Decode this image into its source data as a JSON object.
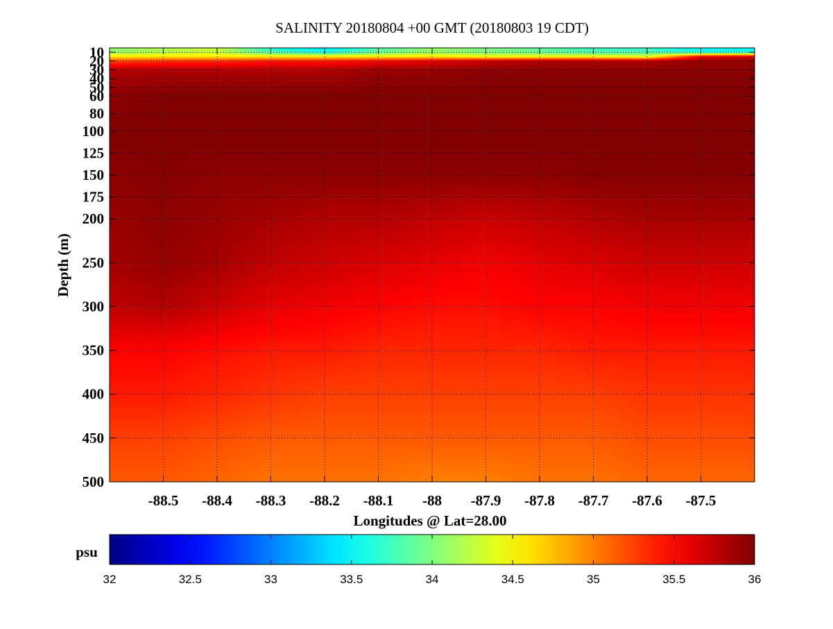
{
  "chart_data": {
    "type": "heatmap",
    "title": "SALINITY 20180804 +00 GMT (20180803 19 CDT)",
    "xlabel": "Longitudes @ Lat=28.00",
    "ylabel": "Depth (m)",
    "xlim": [
      -88.6,
      -87.4
    ],
    "ylim": [
      500,
      5
    ],
    "y_reversed": true,
    "x_ticks": [
      -88.5,
      -88.4,
      -88.3,
      -88.2,
      -88.1,
      -88.0,
      -87.9,
      -87.8,
      -87.7,
      -87.6,
      -87.5
    ],
    "x_tick_labels": [
      "-88.5",
      "-88.4",
      "-88.3",
      "-88.2",
      "-88.1",
      "-88",
      "-87.9",
      "-87.8",
      "-87.7",
      "-87.6",
      "-87.5"
    ],
    "y_ticks": [
      10,
      20,
      30,
      40,
      50,
      60,
      80,
      100,
      125,
      150,
      175,
      200,
      250,
      300,
      350,
      400,
      450,
      500
    ],
    "y_tick_labels": [
      "10",
      "20",
      "30",
      "40",
      "50",
      "60",
      "80",
      "100",
      "125",
      "150",
      "175",
      "200",
      "250",
      "300",
      "350",
      "400",
      "450",
      "500"
    ],
    "grid": true,
    "colormap": "jet",
    "colorbar": {
      "label": "psu",
      "range": [
        32,
        36
      ],
      "ticks": [
        32,
        32.5,
        33,
        33.5,
        34,
        34.5,
        35,
        35.5,
        36
      ],
      "tick_labels": [
        "32",
        "32.5",
        "33",
        "33.5",
        "34",
        "34.5",
        "35",
        "35.5",
        "36"
      ]
    },
    "z_x": [
      -88.6,
      -88.5,
      -88.4,
      -88.3,
      -88.2,
      -88.1,
      -88.0,
      -87.9,
      -87.8,
      -87.7,
      -87.6,
      -87.5,
      -87.4
    ],
    "z_y": [
      5,
      10,
      15,
      20,
      30,
      60,
      100,
      150,
      200,
      250,
      300,
      350,
      400,
      450,
      500
    ],
    "z": [
      [
        34.0,
        34.2,
        34.3,
        33.6,
        33.4,
        33.8,
        34.1,
        34.0,
        33.9,
        33.7,
        33.7,
        33.5,
        33.5
      ],
      [
        34.1,
        34.2,
        34.3,
        33.8,
        33.6,
        33.9,
        34.1,
        34.0,
        33.9,
        33.8,
        33.8,
        33.6,
        33.6
      ],
      [
        34.6,
        34.6,
        34.6,
        34.6,
        34.6,
        34.6,
        34.6,
        34.5,
        34.5,
        34.5,
        34.4,
        35.6,
        35.7
      ],
      [
        35.2,
        35.3,
        35.3,
        35.4,
        35.4,
        35.5,
        35.6,
        35.7,
        35.8,
        35.8,
        35.8,
        35.9,
        35.9
      ],
      [
        35.8,
        35.8,
        35.8,
        35.8,
        35.8,
        35.9,
        35.9,
        35.95,
        35.95,
        35.95,
        35.95,
        35.95,
        35.95
      ],
      [
        35.95,
        36.0,
        36.0,
        36.0,
        36.0,
        36.0,
        36.0,
        36.0,
        36.0,
        36.0,
        36.0,
        36.0,
        36.0
      ],
      [
        36.0,
        36.0,
        36.0,
        36.0,
        36.0,
        36.0,
        36.0,
        36.0,
        36.0,
        36.0,
        36.0,
        36.0,
        36.0
      ],
      [
        35.95,
        35.98,
        35.95,
        35.95,
        35.95,
        35.95,
        35.95,
        35.95,
        35.95,
        35.98,
        35.98,
        35.98,
        35.98
      ],
      [
        35.9,
        35.95,
        35.9,
        35.85,
        35.8,
        35.8,
        35.75,
        35.7,
        35.75,
        35.8,
        35.85,
        35.85,
        35.85
      ],
      [
        35.85,
        35.92,
        35.85,
        35.75,
        35.7,
        35.65,
        35.6,
        35.55,
        35.6,
        35.65,
        35.7,
        35.7,
        35.7
      ],
      [
        35.75,
        35.8,
        35.7,
        35.6,
        35.55,
        35.5,
        35.45,
        35.45,
        35.5,
        35.5,
        35.55,
        35.55,
        35.55
      ],
      [
        35.5,
        35.5,
        35.45,
        35.4,
        35.4,
        35.35,
        35.35,
        35.35,
        35.35,
        35.4,
        35.4,
        35.4,
        35.4
      ],
      [
        35.4,
        35.4,
        35.35,
        35.3,
        35.25,
        35.25,
        35.25,
        35.25,
        35.25,
        35.25,
        35.3,
        35.3,
        35.3
      ],
      [
        35.25,
        35.25,
        35.2,
        35.15,
        35.15,
        35.15,
        35.15,
        35.15,
        35.15,
        35.15,
        35.2,
        35.2,
        35.2
      ],
      [
        35.15,
        35.15,
        35.1,
        35.05,
        35.05,
        35.05,
        35.0,
        35.0,
        35.05,
        35.05,
        35.1,
        35.1,
        35.1
      ]
    ]
  }
}
